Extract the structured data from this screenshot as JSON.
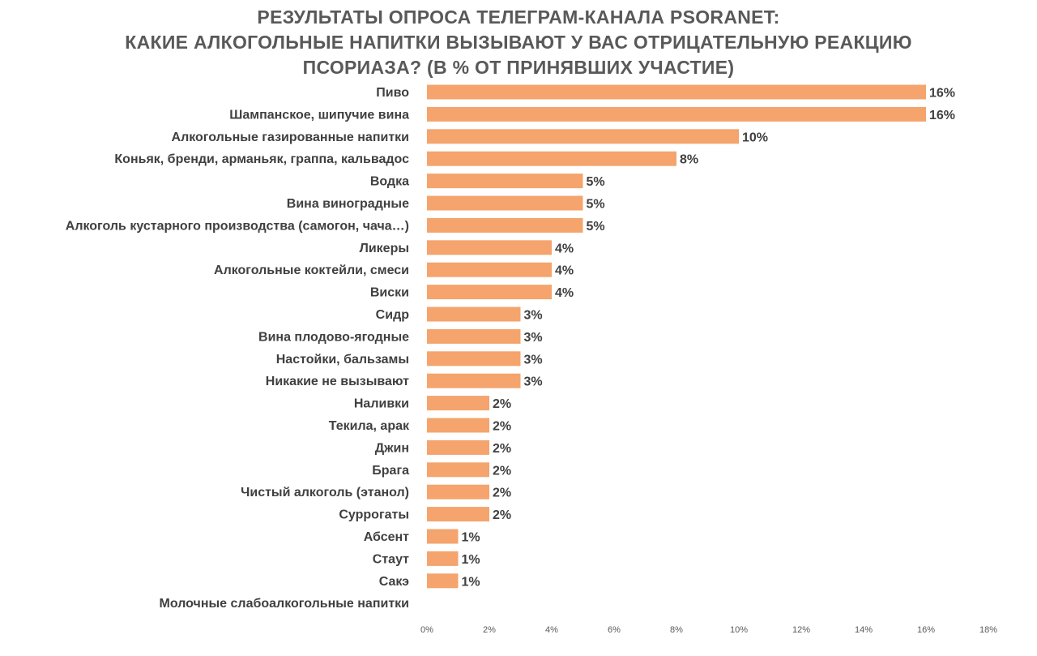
{
  "chart_data": {
    "type": "bar",
    "orientation": "horizontal",
    "title_lines": [
      "РЕЗУЛЬТАТЫ ОПРОСА ТЕЛЕГРАМ-КАНАЛА PSORANET:",
      "КАКИЕ АЛКОГОЛЬНЫЕ НАПИТКИ ВЫЗЫВАЮТ У ВАС ОТРИЦАТЕЛЬНУЮ РЕАКЦИЮ",
      "ПСОРИАЗА? (В % ОТ ПРИНЯВШИХ УЧАСТИЕ)"
    ],
    "categories": [
      "Пиво",
      "Шампанское, шипучие вина",
      "Алкогольные газированные напитки",
      "Коньяк, бренди, арманьяк, граппа, кальвадос",
      "Водка",
      "Вина виноградные",
      "Алкоголь кустарного производства (самогон, чача…)",
      "Ликеры",
      "Алкогольные коктейли, смеси",
      "Виски",
      "Сидр",
      "Вина плодово-ягодные",
      "Настойки, бальзамы",
      "Никакие не вызывают",
      "Наливки",
      "Текила, арак",
      "Джин",
      "Брага",
      "Чистый алкоголь (этанол)",
      "Суррогаты",
      "Абсент",
      "Стаут",
      "Сакэ",
      "Молочные слабоалкогольные напитки"
    ],
    "values": [
      16,
      16,
      10,
      8,
      5,
      5,
      5,
      4,
      4,
      4,
      3,
      3,
      3,
      3,
      2,
      2,
      2,
      2,
      2,
      2,
      1,
      1,
      1,
      0
    ],
    "data_labels": [
      "16%",
      "16%",
      "10%",
      "8%",
      "5%",
      "5%",
      "5%",
      "4%",
      "4%",
      "4%",
      "3%",
      "3%",
      "3%",
      "3%",
      "2%",
      "2%",
      "2%",
      "2%",
      "2%",
      "2%",
      "1%",
      "1%",
      "1%",
      ""
    ],
    "xlim": [
      0,
      18
    ],
    "x_ticks": [
      0,
      2,
      4,
      6,
      8,
      10,
      12,
      14,
      16,
      18
    ],
    "x_tick_labels": [
      "0%",
      "2%",
      "4%",
      "6%",
      "8%",
      "10%",
      "12%",
      "14%",
      "16%",
      "18%"
    ],
    "bar_color": "#f4a46c",
    "grid": false,
    "legend": "none"
  }
}
